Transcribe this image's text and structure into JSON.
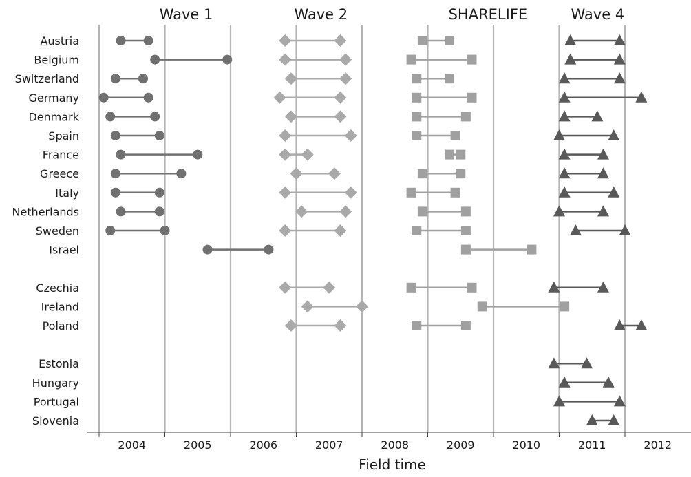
{
  "chart_data": {
    "type": "dumbbell",
    "xlabel": "Field time",
    "x_tick_labels": [
      "2004",
      "2005",
      "2006",
      "2007",
      "2008",
      "2009",
      "2010",
      "2011",
      "2012"
    ],
    "xlim": [
      2003.5,
      2012.5
    ],
    "year_boundaries": [
      2004,
      2005,
      2006,
      2007,
      2008,
      2009,
      2010,
      2011,
      2012
    ],
    "grid": "vertical",
    "countries": [
      "Austria",
      "Belgium",
      "Switzerland",
      "Germany",
      "Denmark",
      "Spain",
      "France",
      "Greece",
      "Italy",
      "Netherlands",
      "Sweden",
      "Israel",
      "",
      "Czechia",
      "Ireland",
      "Poland",
      "",
      "Estonia",
      "Hungary",
      "Portugal",
      "Slovenia"
    ],
    "series": [
      {
        "name": "Wave 1",
        "marker": "circle",
        "color": "#707070",
        "ranges": [
          [
            "Austria",
            2004.33,
            2004.75
          ],
          [
            "Belgium",
            2004.85,
            2005.95
          ],
          [
            "Switzerland",
            2004.25,
            2004.67
          ],
          [
            "Germany",
            2004.07,
            2004.75
          ],
          [
            "Denmark",
            2004.17,
            2004.85
          ],
          [
            "Spain",
            2004.25,
            2004.92
          ],
          [
            "France",
            2004.33,
            2005.5
          ],
          [
            "Greece",
            2004.25,
            2005.25
          ],
          [
            "Italy",
            2004.25,
            2004.92
          ],
          [
            "Netherlands",
            2004.33,
            2004.92
          ],
          [
            "Sweden",
            2004.17,
            2005.0
          ],
          [
            "Israel",
            2005.65,
            2006.58
          ]
        ]
      },
      {
        "name": "Wave 2",
        "marker": "diamond",
        "color": "#a9a9a9",
        "ranges": [
          [
            "Austria",
            2006.83,
            2007.67
          ],
          [
            "Belgium",
            2006.83,
            2007.75
          ],
          [
            "Switzerland",
            2006.92,
            2007.75
          ],
          [
            "Germany",
            2006.75,
            2007.67
          ],
          [
            "Denmark",
            2006.92,
            2007.67
          ],
          [
            "Spain",
            2006.83,
            2007.83
          ],
          [
            "France",
            2006.83,
            2007.17
          ],
          [
            "Greece",
            2007.0,
            2007.58
          ],
          [
            "Italy",
            2006.83,
            2007.83
          ],
          [
            "Netherlands",
            2007.08,
            2007.75
          ],
          [
            "Sweden",
            2006.83,
            2007.67
          ],
          [
            "Czechia",
            2006.83,
            2007.5
          ],
          [
            "Ireland",
            2007.17,
            2008.0
          ],
          [
            "Poland",
            2006.92,
            2007.67
          ]
        ]
      },
      {
        "name": "SHARELIFE",
        "marker": "square",
        "color": "#a0a0a0",
        "ranges": [
          [
            "Austria",
            2008.92,
            2009.33
          ],
          [
            "Belgium",
            2008.75,
            2009.67
          ],
          [
            "Switzerland",
            2008.83,
            2009.33
          ],
          [
            "Germany",
            2008.83,
            2009.67
          ],
          [
            "Denmark",
            2008.83,
            2009.58
          ],
          [
            "Spain",
            2008.83,
            2009.42
          ],
          [
            "France",
            2009.33,
            2009.5
          ],
          [
            "Greece",
            2008.92,
            2009.5
          ],
          [
            "Italy",
            2008.75,
            2009.42
          ],
          [
            "Netherlands",
            2008.92,
            2009.58
          ],
          [
            "Sweden",
            2008.83,
            2009.58
          ],
          [
            "Israel",
            2009.58,
            2010.58
          ],
          [
            "Czechia",
            2008.75,
            2009.67
          ],
          [
            "Ireland",
            2009.83,
            2011.08
          ],
          [
            "Poland",
            2008.83,
            2009.58
          ]
        ]
      },
      {
        "name": "Wave 4",
        "marker": "triangle",
        "color": "#595959",
        "ranges": [
          [
            "Austria",
            2011.17,
            2011.92
          ],
          [
            "Belgium",
            2011.17,
            2011.92
          ],
          [
            "Switzerland",
            2011.08,
            2011.92
          ],
          [
            "Germany",
            2011.08,
            2012.25
          ],
          [
            "Denmark",
            2011.08,
            2011.58
          ],
          [
            "Spain",
            2011.0,
            2011.83
          ],
          [
            "France",
            2011.08,
            2011.67
          ],
          [
            "Greece",
            2011.08,
            2011.67
          ],
          [
            "Italy",
            2011.08,
            2011.83
          ],
          [
            "Netherlands",
            2011.0,
            2011.67
          ],
          [
            "Sweden",
            2011.25,
            2012.0
          ],
          [
            "Czechia",
            2010.92,
            2011.67
          ],
          [
            "Poland",
            2011.92,
            2012.25
          ],
          [
            "Estonia",
            2010.92,
            2011.42
          ],
          [
            "Hungary",
            2011.08,
            2011.75
          ],
          [
            "Portugal",
            2011.0,
            2011.92
          ],
          [
            "Slovenia",
            2011.5,
            2011.83
          ]
        ]
      }
    ]
  }
}
